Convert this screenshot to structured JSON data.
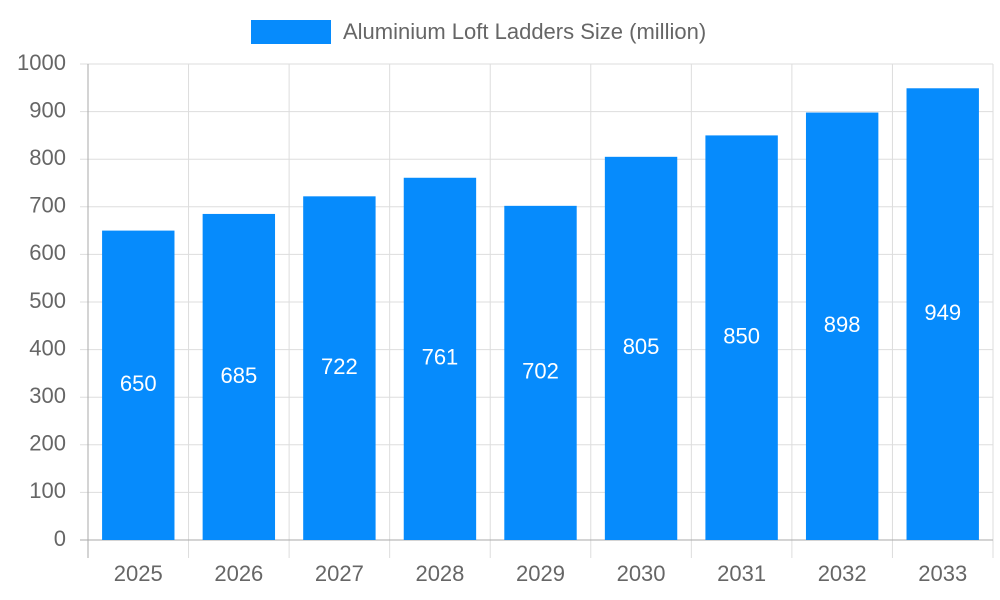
{
  "chart_data": {
    "type": "bar",
    "categories": [
      "2025",
      "2026",
      "2027",
      "2028",
      "2029",
      "2030",
      "2031",
      "2032",
      "2033"
    ],
    "series": [
      {
        "name": "Aluminium Loft Ladders Size (million)",
        "color": "#068bfc",
        "values": [
          650,
          685,
          722,
          761,
          702,
          805,
          850,
          898,
          949
        ]
      }
    ],
    "ylim": [
      0,
      1000
    ],
    "yticks": [
      0,
      100,
      200,
      300,
      400,
      500,
      600,
      700,
      800,
      900,
      1000
    ],
    "grid": true,
    "legend": "top",
    "data_labels": true
  }
}
